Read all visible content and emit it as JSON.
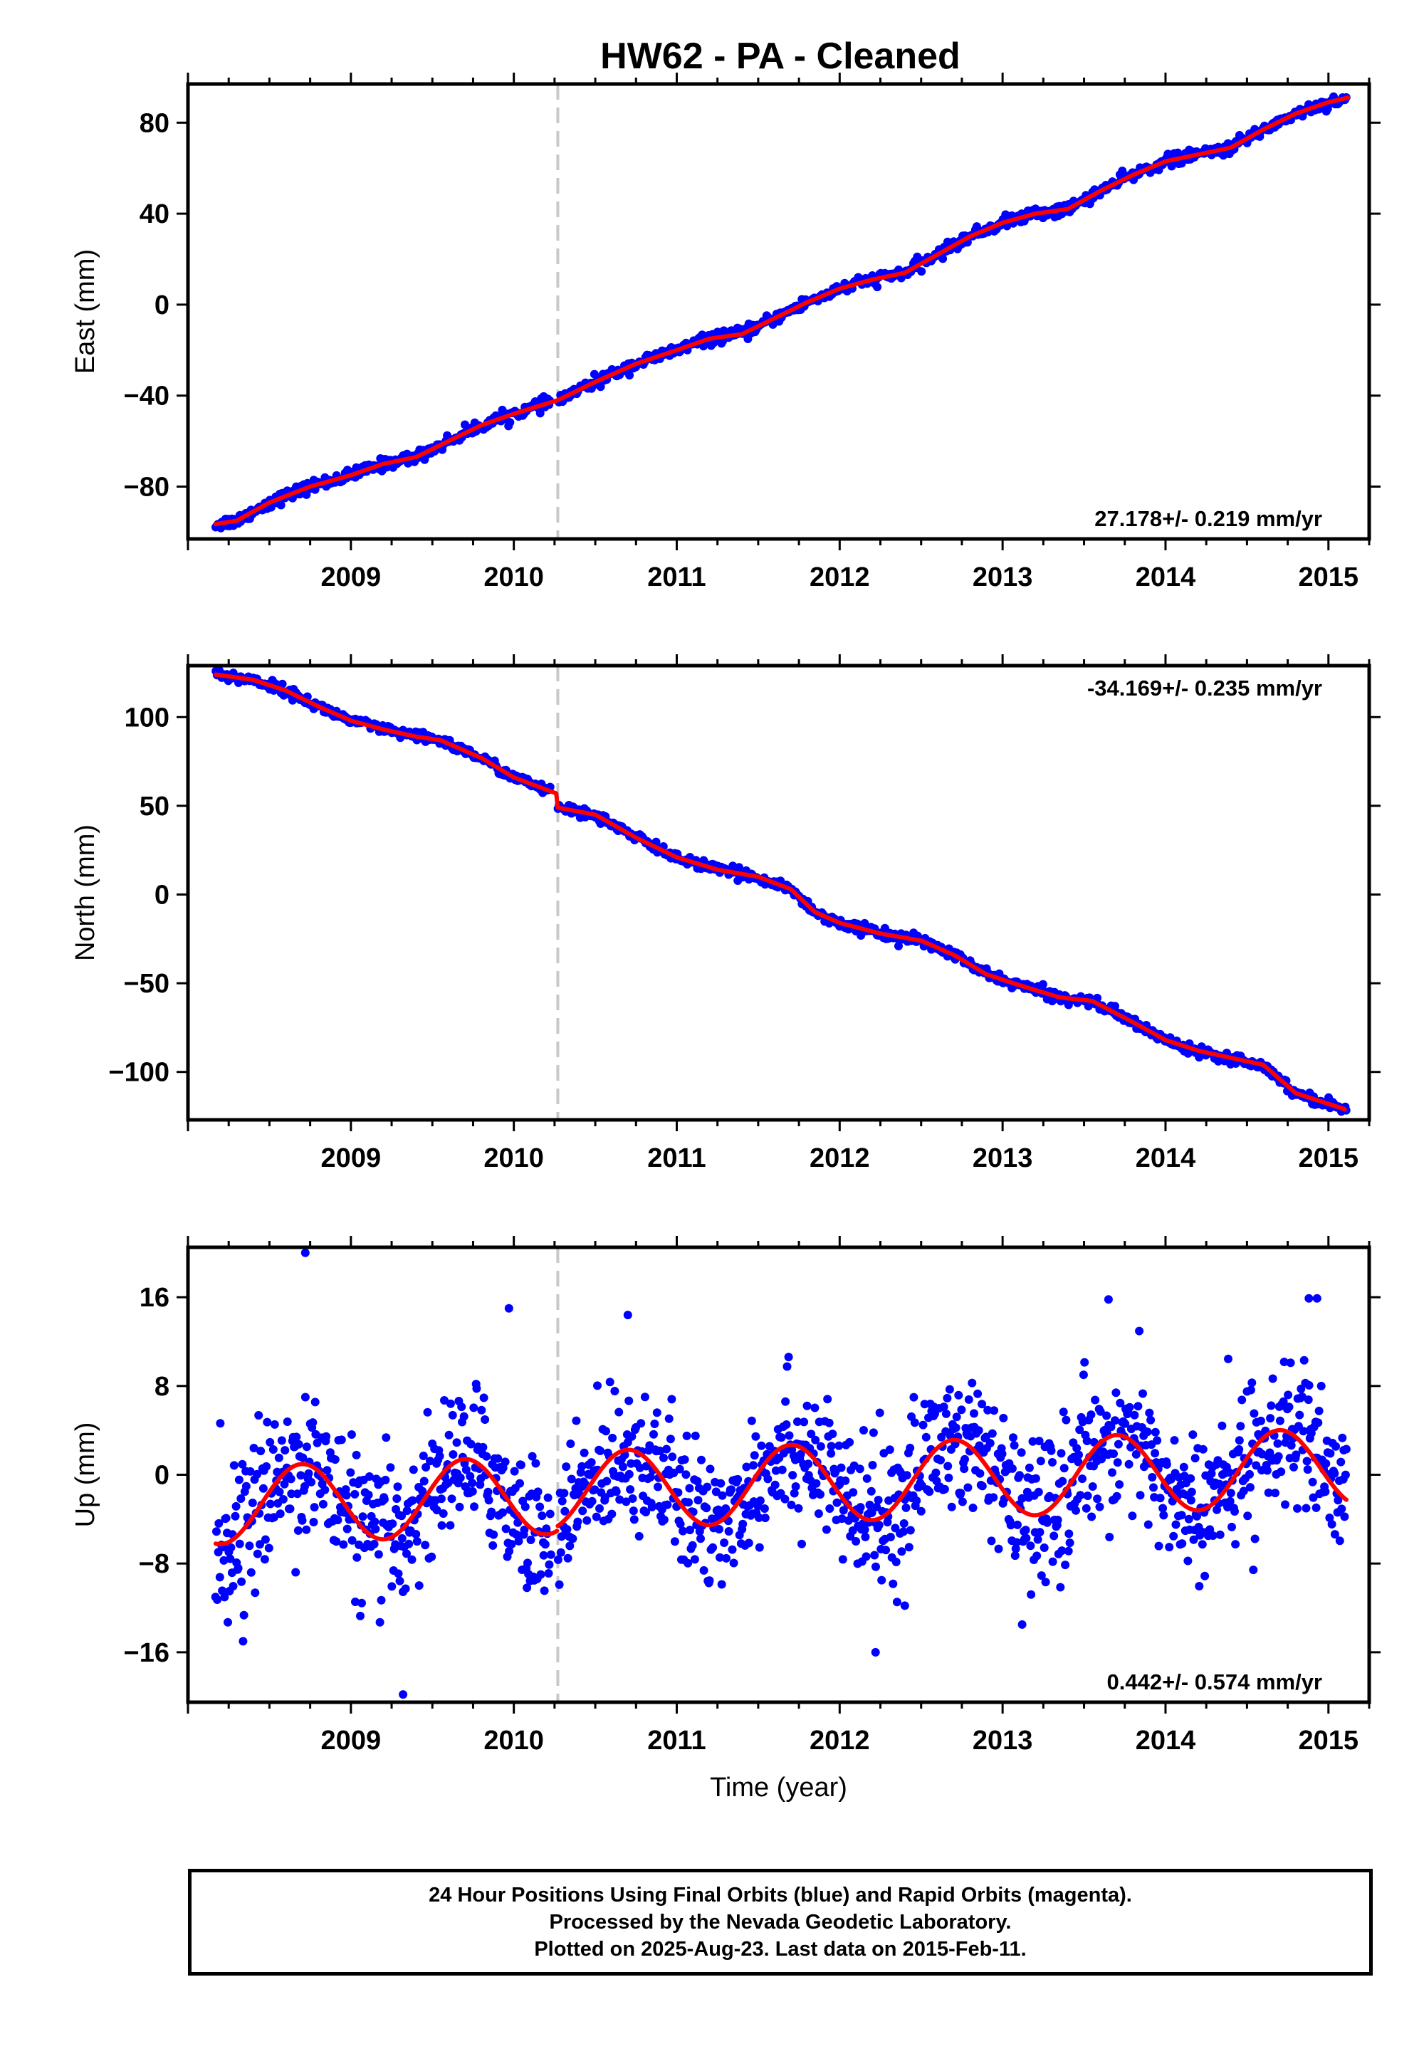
{
  "title": "HW62  - PA - Cleaned",
  "colors": {
    "data": "#0000ff",
    "model": "#ff0000",
    "offset_line": "#c8c8c8",
    "frame": "#000000"
  },
  "footer": {
    "line1": "24 Hour Positions Using Final Orbits (blue) and Rapid Orbits (magenta).",
    "line2": "Processed by the Nevada Geodetic Laboratory.",
    "line3": "Plotted on 2025-Aug-23. Last data on 2015-Feb-11."
  },
  "chart_data": [
    {
      "type": "scatter",
      "panel": "east",
      "xlabel": "",
      "ylabel": "East (mm)",
      "xlim": [
        2008.0,
        2015.25
      ],
      "ylim": [
        -103,
        97
      ],
      "xticks": [
        2009,
        2010,
        2011,
        2012,
        2013,
        2014,
        2015
      ],
      "yticks": [
        -80,
        -40,
        0,
        40,
        80
      ],
      "rate_label": "27.178+/- 0.219 mm/yr",
      "rate_label_position": "bottom-right",
      "offset_epoch": 2010.27,
      "model_knots": [
        [
          2008.17,
          -96.5
        ],
        [
          2008.3,
          -95
        ],
        [
          2008.5,
          -87
        ],
        [
          2008.75,
          -80
        ],
        [
          2009.0,
          -75
        ],
        [
          2009.2,
          -70
        ],
        [
          2009.4,
          -67
        ],
        [
          2009.6,
          -60
        ],
        [
          2009.8,
          -53
        ],
        [
          2010.0,
          -48
        ],
        [
          2010.27,
          -42
        ],
        [
          2010.5,
          -34
        ],
        [
          2010.75,
          -26
        ],
        [
          2011.0,
          -20
        ],
        [
          2011.2,
          -15
        ],
        [
          2011.4,
          -13
        ],
        [
          2011.6,
          -6
        ],
        [
          2011.8,
          1
        ],
        [
          2012.0,
          7
        ],
        [
          2012.2,
          11
        ],
        [
          2012.4,
          14
        ],
        [
          2012.6,
          22
        ],
        [
          2012.8,
          30
        ],
        [
          2013.0,
          36
        ],
        [
          2013.2,
          40
        ],
        [
          2013.4,
          42
        ],
        [
          2013.6,
          50
        ],
        [
          2013.8,
          57
        ],
        [
          2014.0,
          63
        ],
        [
          2014.2,
          66
        ],
        [
          2014.4,
          69
        ],
        [
          2014.6,
          77
        ],
        [
          2014.8,
          84
        ],
        [
          2015.0,
          89
        ],
        [
          2015.12,
          91
        ]
      ],
      "scatter": {
        "x_start": 2008.17,
        "x_end": 2015.11,
        "count": 900,
        "noise_sd": 1.3,
        "gap_start": 2010.23,
        "gap_end": 2010.27
      }
    },
    {
      "type": "scatter",
      "panel": "north",
      "xlabel": "",
      "ylabel": "North (mm)",
      "xlim": [
        2008.0,
        2015.25
      ],
      "ylim": [
        -127,
        129
      ],
      "xticks": [
        2009,
        2010,
        2011,
        2012,
        2013,
        2014,
        2015
      ],
      "yticks": [
        -100,
        -50,
        0,
        50,
        100
      ],
      "rate_label": "-34.169+/- 0.235 mm/yr",
      "rate_label_position": "top-right",
      "offset_epoch": 2010.27,
      "model_knots": [
        [
          2008.17,
          124
        ],
        [
          2008.4,
          121
        ],
        [
          2008.6,
          115
        ],
        [
          2008.8,
          106
        ],
        [
          2009.0,
          98
        ],
        [
          2009.2,
          93
        ],
        [
          2009.4,
          89
        ],
        [
          2009.55,
          87
        ],
        [
          2009.8,
          77
        ],
        [
          2010.0,
          66
        ],
        [
          2010.26,
          57
        ],
        [
          2010.27,
          49
        ],
        [
          2010.5,
          45
        ],
        [
          2010.75,
          32
        ],
        [
          2011.0,
          21
        ],
        [
          2011.25,
          14
        ],
        [
          2011.5,
          10
        ],
        [
          2011.7,
          3
        ],
        [
          2011.85,
          -10
        ],
        [
          2012.0,
          -16
        ],
        [
          2012.25,
          -22
        ],
        [
          2012.5,
          -26
        ],
        [
          2012.7,
          -34
        ],
        [
          2012.9,
          -45
        ],
        [
          2013.1,
          -51
        ],
        [
          2013.35,
          -58
        ],
        [
          2013.55,
          -60
        ],
        [
          2013.8,
          -72
        ],
        [
          2014.0,
          -82
        ],
        [
          2014.2,
          -88
        ],
        [
          2014.45,
          -93
        ],
        [
          2014.6,
          -96
        ],
        [
          2014.8,
          -112
        ],
        [
          2015.1,
          -121
        ]
      ],
      "scatter": {
        "x_start": 2008.17,
        "x_end": 2015.11,
        "count": 900,
        "noise_sd": 1.4,
        "gap_start": 2010.23,
        "gap_end": 2010.27
      }
    },
    {
      "type": "scatter",
      "panel": "up",
      "xlabel": "Time (year)",
      "ylabel": "Up (mm)",
      "xlim": [
        2008.0,
        2015.25
      ],
      "ylim": [
        -20.5,
        20.5
      ],
      "xticks": [
        2009,
        2010,
        2011,
        2012,
        2013,
        2014,
        2015
      ],
      "yticks": [
        -16,
        -8,
        0,
        8,
        16
      ],
      "rate_label": "0.442+/- 0.574 mm/yr",
      "rate_label_position": "bottom-right",
      "offset_epoch": 2010.27,
      "model": {
        "mean": -0.9,
        "rate": 0.442,
        "ref_year": 2011.5,
        "amplitude": 3.5,
        "phase_peak_year_fraction": 0.7,
        "x_start": 2008.17,
        "x_end": 2015.11,
        "offset_before": -0.4,
        "offset_after": 0.0
      },
      "scatter": {
        "x_start": 2008.17,
        "x_end": 2015.11,
        "count": 1400,
        "noise_sd": 3.2,
        "gap_start": 2010.23,
        "gap_end": 2010.27,
        "outliers": [
          [
            2008.72,
            20
          ],
          [
            2009.32,
            -19.8
          ],
          [
            2009.97,
            15
          ],
          [
            2010.7,
            14.4
          ],
          [
            2012.22,
            -16
          ],
          [
            2013.65,
            15.8
          ],
          [
            2014.88,
            15.9
          ],
          [
            2014.93,
            15.9
          ],
          [
            2012.4,
            -11.8
          ],
          [
            2013.12,
            -13.5
          ]
        ]
      }
    }
  ]
}
